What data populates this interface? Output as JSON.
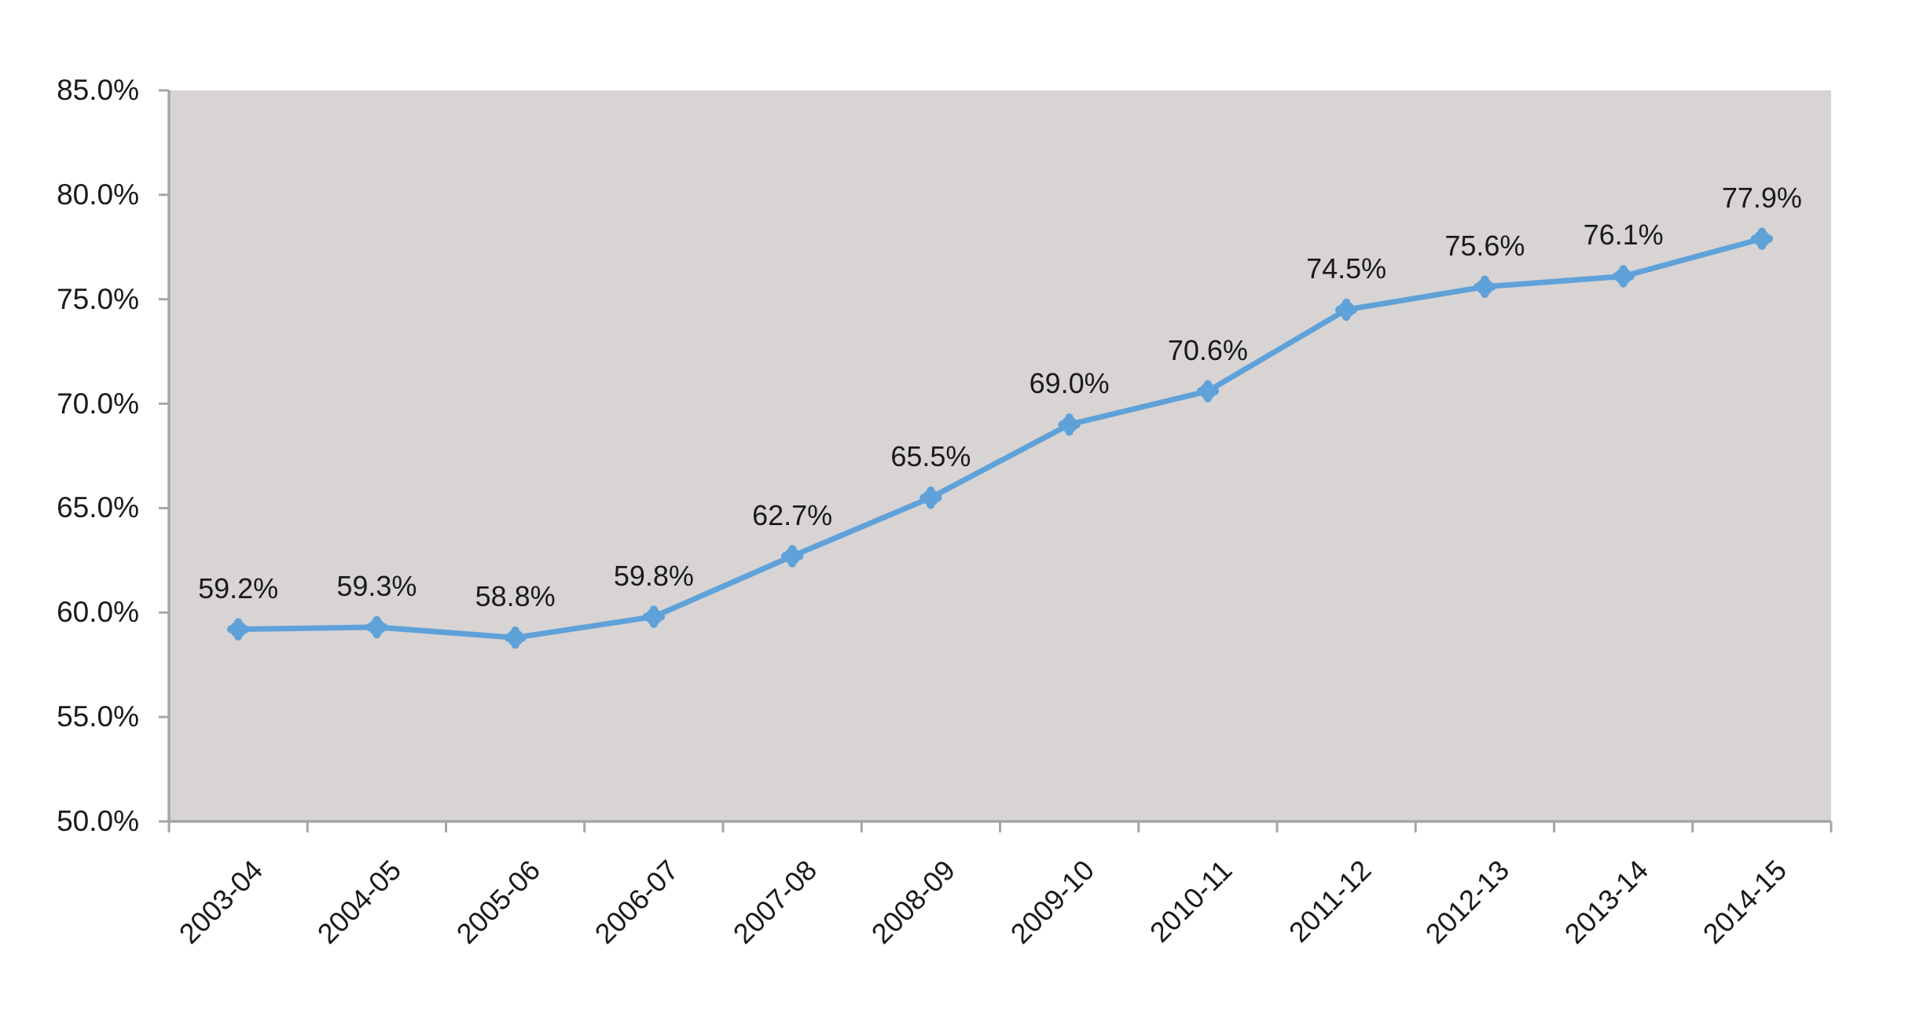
{
  "chart_data": {
    "type": "line",
    "title": "",
    "xlabel": "",
    "ylabel": "",
    "categories": [
      "2003-04",
      "2004-05",
      "2005-06",
      "2006-07",
      "2007-08",
      "2008-09",
      "2009-10",
      "2010-11",
      "2011-12",
      "2012-13",
      "2013-14",
      "2014-15"
    ],
    "series": [
      {
        "values": [
          59.2,
          59.3,
          58.8,
          59.8,
          62.7,
          65.5,
          69.0,
          70.6,
          74.5,
          75.6,
          76.1,
          77.9
        ],
        "data_labels": [
          "59.2%",
          "59.3%",
          "58.8%",
          "59.8%",
          "62.7%",
          "65.5%",
          "69.0%",
          "70.6%",
          "74.5%",
          "75.6%",
          "76.1%",
          "77.9%"
        ]
      }
    ],
    "ylim": [
      50,
      85
    ],
    "y_ticks": [
      {
        "value": 85,
        "label": "85.0%"
      },
      {
        "value": 80,
        "label": "80.0%"
      },
      {
        "value": 75,
        "label": "75.0%"
      },
      {
        "value": 70,
        "label": "70.0%"
      },
      {
        "value": 65,
        "label": "65.0%"
      },
      {
        "value": 60,
        "label": "60.0%"
      },
      {
        "value": 55,
        "label": "55.0%"
      },
      {
        "value": 50,
        "label": "50.0%"
      }
    ],
    "grid": false,
    "legend": "none",
    "marker": "round-clover",
    "x_label_rotation_deg": -45
  },
  "colors": {
    "line": "#5FA1D9",
    "marker": "#5FA1D9",
    "plot_background": "#D8D4D4",
    "axis": "#A6A6A6",
    "text": "#1A1A1A",
    "page_background": "#FFFFFF"
  }
}
